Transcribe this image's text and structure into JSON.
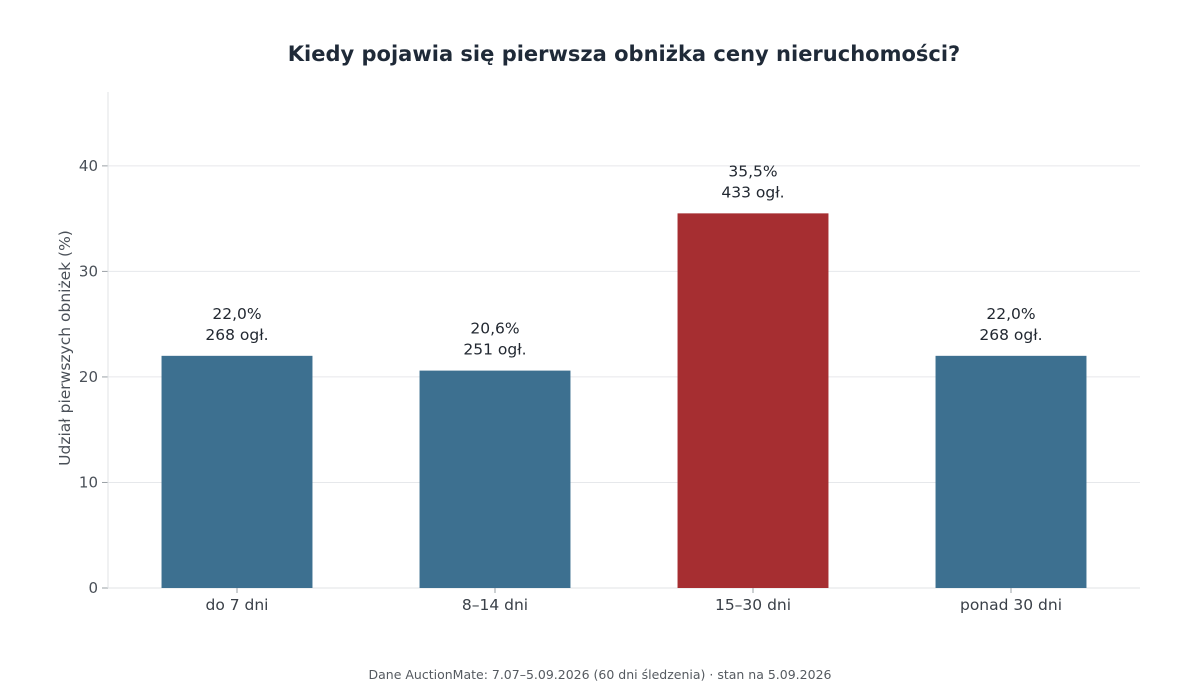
{
  "chart_data": {
    "type": "bar",
    "title": "Kiedy pojawia się pierwsza obniżka ceny nieruchomości?",
    "xlabel": "",
    "ylabel": "Udział pierwszych obniżek (%)",
    "ylim": [
      0,
      47
    ],
    "yticks": [
      0,
      10,
      20,
      30,
      40
    ],
    "ytick_labels": [
      "0",
      "10",
      "20",
      "30",
      "40"
    ],
    "grid": true,
    "categories": [
      "do 7 dni",
      "8–14 dni",
      "15–30 dni",
      "ponad 30 dni"
    ],
    "values": [
      22.0,
      20.6,
      35.5,
      22.0
    ],
    "value_labels": [
      "22,0%",
      "20,6%",
      "35,5%",
      "22,0%"
    ],
    "count_labels": [
      "268 ogł.",
      "251 ogł.",
      "433 ogł.",
      "268 ogł."
    ],
    "colors": [
      "#3d7090",
      "#3d7090",
      "#a62e31",
      "#3d7090"
    ],
    "footer": "Dane AuctionMate: 7.07–5.09.2026 (60 dni śledzenia) · stan na 5.09.2026"
  }
}
